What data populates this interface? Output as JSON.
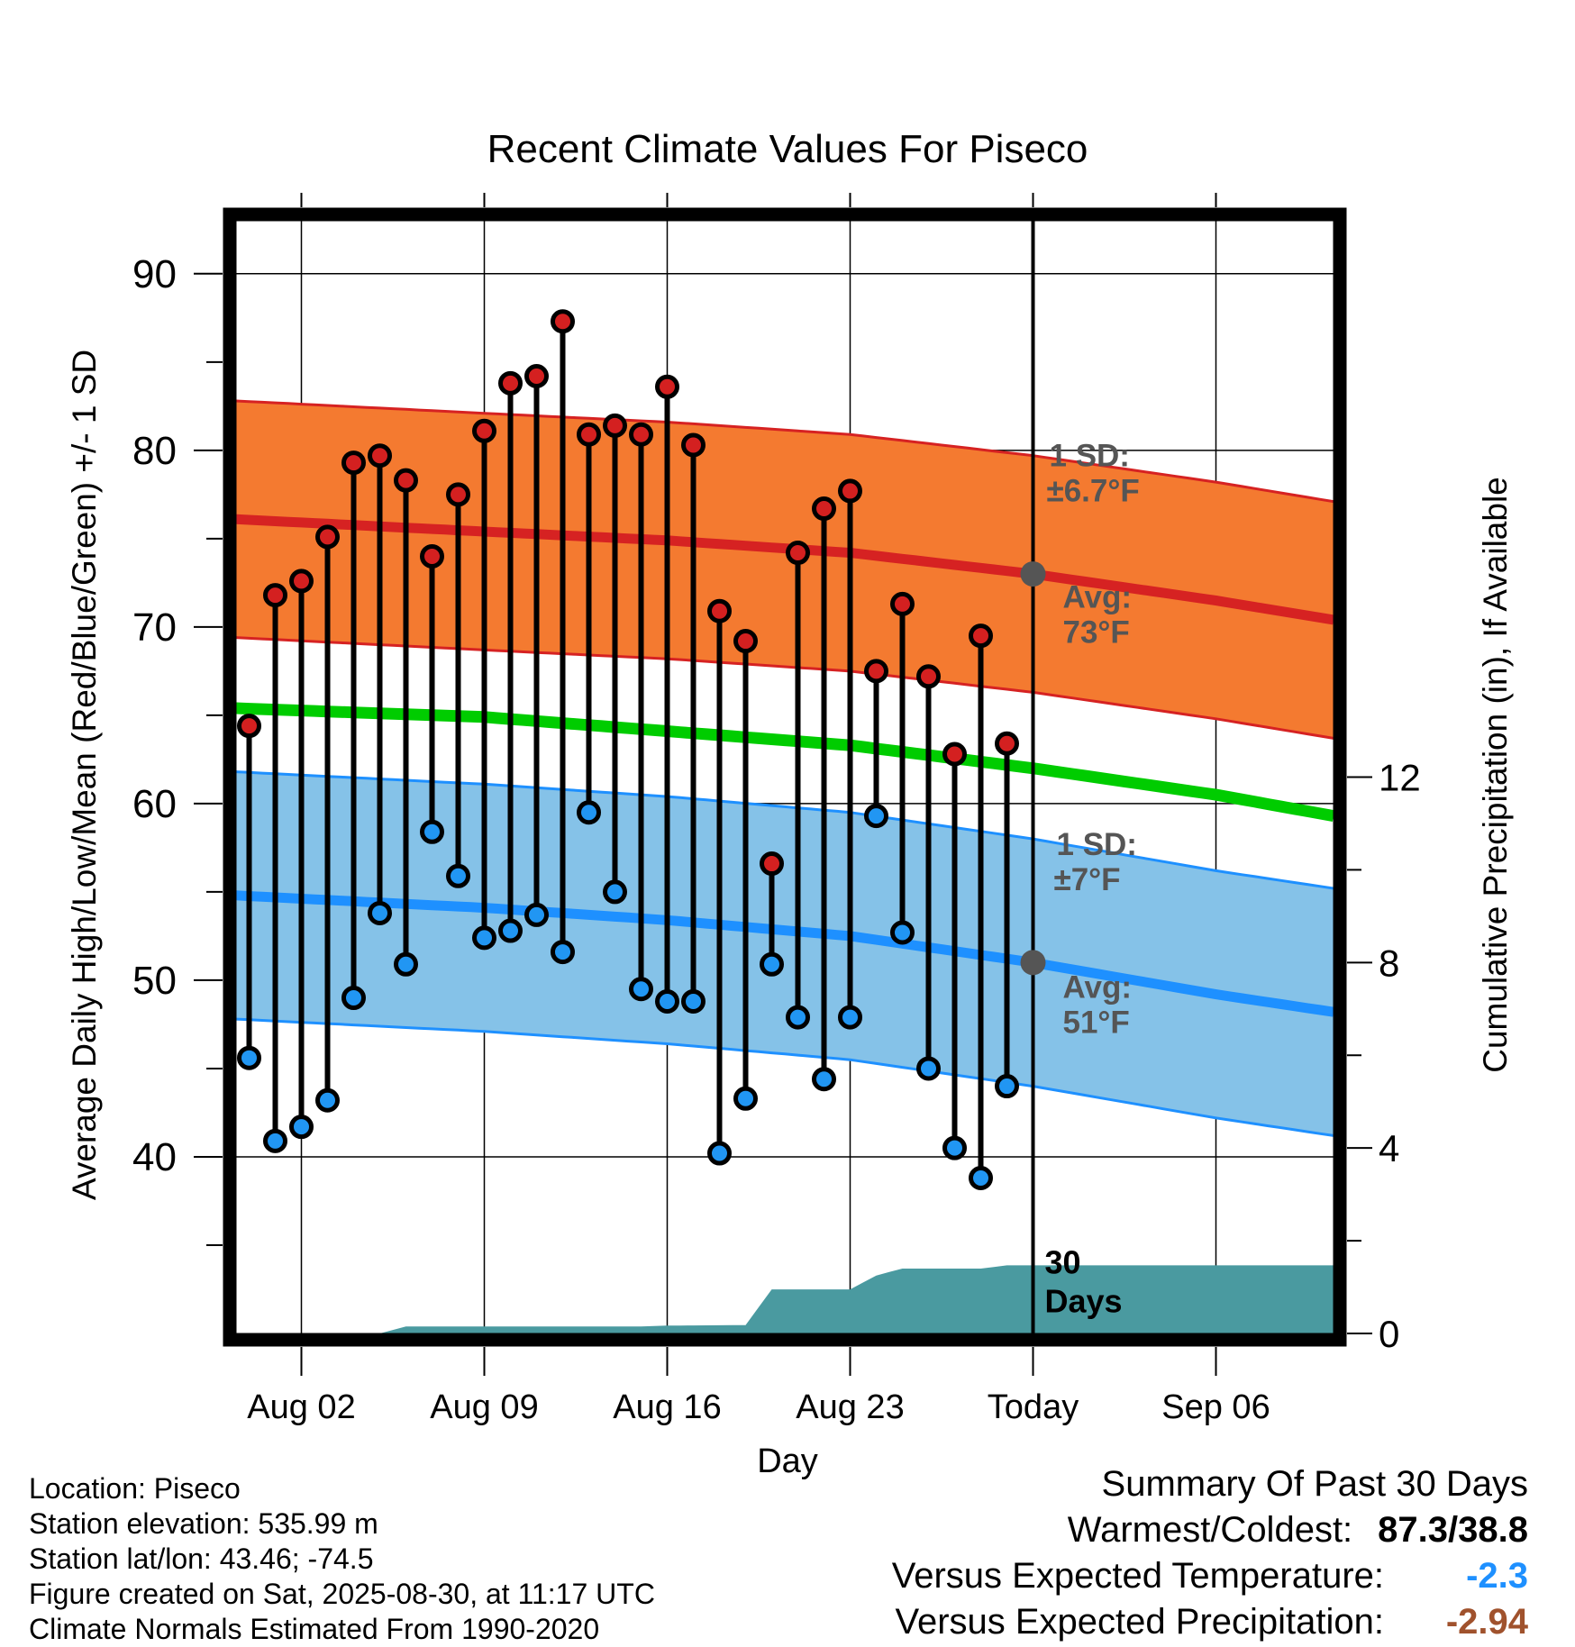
{
  "chart_data": {
    "type": "line",
    "title": "Recent Climate Values For Piseco",
    "xlabel": "Day",
    "ylabel_left": "Average Daily High/Low/Mean (Red/Blue/Green) +/- 1 SD",
    "ylabel_right": "Cumulative Precipitation (in), If Available",
    "x_range_day_of_year": [
      211.5,
      253.5
    ],
    "ylim_left": [
      30,
      93
    ],
    "ylim_right": [
      0,
      24
    ],
    "grid": true,
    "x_ticks": [
      {
        "day": 214,
        "label": "Aug 02"
      },
      {
        "day": 221,
        "label": "Aug 09"
      },
      {
        "day": 228,
        "label": "Aug 16"
      },
      {
        "day": 235,
        "label": "Aug 23"
      },
      {
        "day": 242,
        "label": "Today"
      },
      {
        "day": 249,
        "label": "Sep 06"
      }
    ],
    "y_ticks_left": [
      "40",
      "50",
      "60",
      "70",
      "80",
      "90"
    ],
    "y_ticks_left_values": [
      40,
      50,
      60,
      70,
      80,
      90
    ],
    "y_ticks_right": [
      "0",
      "4",
      "8",
      "12"
    ],
    "y_ticks_right_values": [
      0,
      4,
      8,
      12
    ],
    "today_day": 242,
    "days": [
      212,
      213,
      214,
      215,
      216,
      217,
      218,
      219,
      220,
      221,
      222,
      223,
      224,
      225,
      226,
      227,
      228,
      229,
      230,
      231,
      232,
      233,
      234,
      235,
      236,
      237,
      238,
      239,
      240,
      241
    ],
    "observed_high": [
      64.4,
      71.8,
      72.6,
      75.1,
      79.3,
      79.7,
      78.3,
      74.0,
      77.5,
      81.1,
      83.8,
      84.2,
      87.3,
      80.9,
      81.4,
      80.9,
      83.6,
      80.3,
      70.9,
      69.2,
      56.6,
      74.2,
      76.7,
      77.7,
      67.5,
      71.3,
      67.2,
      62.8,
      69.5,
      63.4
    ],
    "observed_low": [
      45.6,
      40.9,
      41.7,
      43.2,
      49.0,
      53.8,
      50.9,
      58.4,
      55.9,
      52.4,
      52.8,
      53.7,
      51.6,
      59.5,
      55.0,
      49.5,
      48.8,
      48.8,
      40.2,
      43.3,
      50.9,
      47.9,
      44.4,
      47.9,
      59.3,
      52.7,
      45.0,
      40.5,
      38.8,
      44.0
    ],
    "normal_high_avg": [
      {
        "day": 211.5,
        "value": 76.1
      },
      {
        "day": 221,
        "value": 75.4
      },
      {
        "day": 228,
        "value": 74.9
      },
      {
        "day": 235,
        "value": 74.2
      },
      {
        "day": 242,
        "value": 73.0
      },
      {
        "day": 249,
        "value": 71.5
      },
      {
        "day": 253.5,
        "value": 70.4
      }
    ],
    "normal_high_sd": 6.7,
    "normal_low_avg": [
      {
        "day": 211.5,
        "value": 54.8
      },
      {
        "day": 221,
        "value": 54.1
      },
      {
        "day": 228,
        "value": 53.4
      },
      {
        "day": 235,
        "value": 52.5
      },
      {
        "day": 242,
        "value": 51.0
      },
      {
        "day": 249,
        "value": 49.2
      },
      {
        "day": 253.5,
        "value": 48.2
      }
    ],
    "normal_low_sd": 7,
    "normal_mean": [
      {
        "day": 211.5,
        "value": 65.4
      },
      {
        "day": 221,
        "value": 64.9
      },
      {
        "day": 228,
        "value": 64.1
      },
      {
        "day": 235,
        "value": 63.3
      },
      {
        "day": 242,
        "value": 62.0
      },
      {
        "day": 249,
        "value": 60.5
      },
      {
        "day": 253.5,
        "value": 59.3
      }
    ],
    "cumulative_precip_in": [
      {
        "day": 211.5,
        "value": 0
      },
      {
        "day": 217,
        "value": 0
      },
      {
        "day": 218,
        "value": 0.15
      },
      {
        "day": 221,
        "value": 0.15
      },
      {
        "day": 227,
        "value": 0.15
      },
      {
        "day": 228,
        "value": 0.17
      },
      {
        "day": 231,
        "value": 0.18
      },
      {
        "day": 232,
        "value": 0.95
      },
      {
        "day": 235,
        "value": 0.95
      },
      {
        "day": 236,
        "value": 1.25
      },
      {
        "day": 237,
        "value": 1.4
      },
      {
        "day": 240,
        "value": 1.4
      },
      {
        "day": 241,
        "value": 1.47
      },
      {
        "day": 242,
        "value": 1.47
      },
      {
        "day": 253.5,
        "value": 1.47
      }
    ],
    "annotations": {
      "high_sd_line1": "1 SD:",
      "high_sd_line2": "±6.7°F",
      "high_avg_line1": "Avg:",
      "high_avg_line2": "73°F",
      "low_sd_line1": "1 SD:",
      "low_sd_line2": "±7°F",
      "low_avg_line1": "Avg:",
      "low_avg_line2": "51°F",
      "window_line1": "30",
      "window_line2": "Days",
      "high_avg_value": 73,
      "low_avg_value": 51
    },
    "colors": {
      "high_band": "#f47a30",
      "high_line": "#d62222",
      "low_band": "#85c2e8",
      "low_line": "#1e90ff",
      "mean_line": "#00cc00",
      "precip": "#4a9aa0",
      "high_marker": "#d42020",
      "low_marker": "#2196f3",
      "annotation": "#555555"
    }
  },
  "footer": {
    "location": "Location: Piseco",
    "elevation": "Station elevation: 535.99 m",
    "latlon": "Station lat/lon: 43.46; -74.5",
    "created": "Figure created on Sat, 2025-08-30, at 11:17 UTC",
    "normals": "Climate Normals Estimated From 1990-2020"
  },
  "summary": {
    "title": "Summary Of Past 30 Days",
    "warm_cold_label": "Warmest/Coldest:",
    "warm_cold_value": "87.3/38.8",
    "temp_label": "Versus Expected Temperature:",
    "temp_value": "-2.3",
    "temp_color": "#1e90ff",
    "precip_label": "Versus Expected Precipitation:",
    "precip_value": "-2.94",
    "precip_color": "#a0522d"
  }
}
